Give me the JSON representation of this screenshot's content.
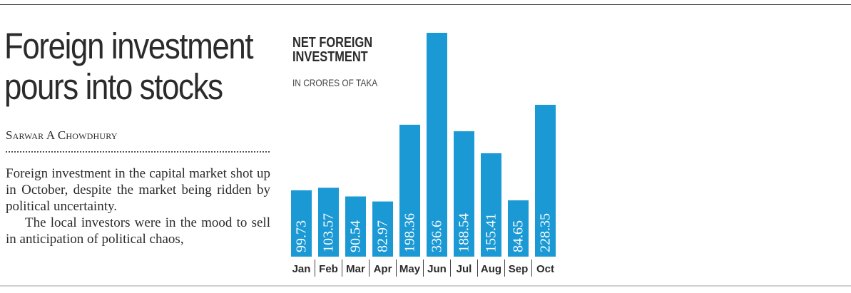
{
  "article": {
    "headline_line1": "Foreign investment",
    "headline_line2": "pours into stocks",
    "byline": "Sarwar A Chowdhury",
    "paragraph1": "Foreign investment in the capital market shot up in October, despite the market being ridden by political uncertainty.",
    "paragraph2": "The local investors were in the mood to sell in anticipation of political chaos,"
  },
  "chart_data": {
    "type": "bar",
    "title_line1": "NET FOREIGN",
    "title_line2": "INVESTMENT",
    "subtitle": "IN CRORES OF TAKA",
    "categories": [
      "Jan",
      "Feb",
      "Mar",
      "Apr",
      "May",
      "Jun",
      "Jul",
      "Aug",
      "Sep",
      "Oct"
    ],
    "values": [
      99.73,
      103.57,
      90.54,
      82.97,
      198.36,
      336.6,
      188.54,
      155.41,
      84.65,
      228.35
    ],
    "value_labels": [
      "99.73",
      "103.57",
      "90.54",
      "82.97",
      "198.36",
      "336.6",
      "188.54",
      "155.41",
      "84.65",
      "228.35"
    ],
    "bar_color": "#1b99d4",
    "ylim": [
      0,
      336.6
    ],
    "grid": false,
    "legend": "none"
  }
}
